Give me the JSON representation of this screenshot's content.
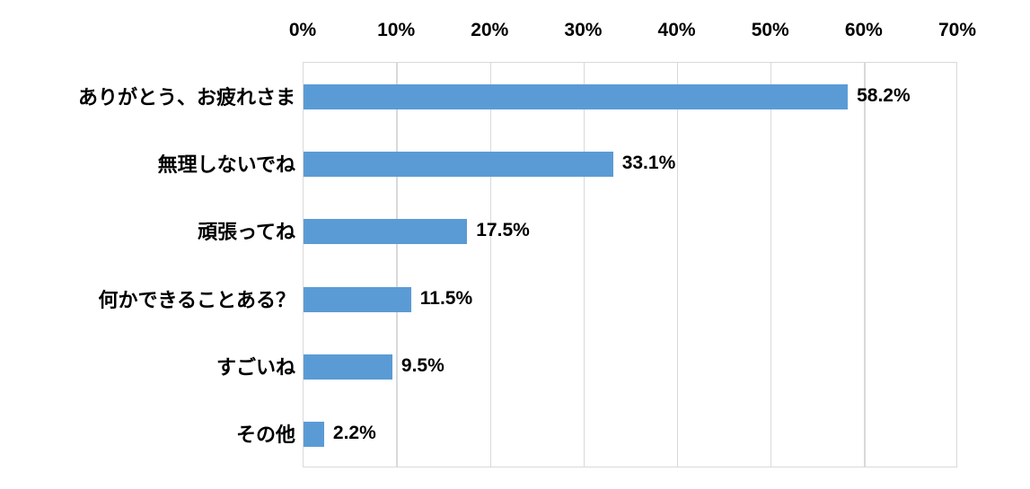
{
  "chart_data": {
    "type": "bar",
    "orientation": "horizontal",
    "title": "",
    "categories": [
      "ありがとう、お疲れさま",
      "無理しないでね",
      "頑張ってね",
      "何かできることある？",
      "すごいね",
      "その他"
    ],
    "values": [
      58.2,
      33.1,
      17.5,
      11.5,
      9.5,
      2.2
    ],
    "value_labels": [
      "58.2%",
      "33.1%",
      "17.5%",
      "11.5%",
      "9.5%",
      "2.2%"
    ],
    "x_ticks": [
      "0%",
      "10%",
      "20%",
      "30%",
      "40%",
      "50%",
      "60%",
      "70%"
    ],
    "x_tick_values": [
      0,
      10,
      20,
      30,
      40,
      50,
      60,
      70
    ],
    "xlim": [
      0,
      70
    ],
    "xlabel": "",
    "ylabel": "",
    "tick_position": "top",
    "grid": true,
    "legend": false,
    "colors": {
      "bar": "#5b9bd5",
      "gridline": "#d9d9d9",
      "plot_border": "#d9d9d9",
      "text": "#000000",
      "background": "#ffffff"
    }
  }
}
